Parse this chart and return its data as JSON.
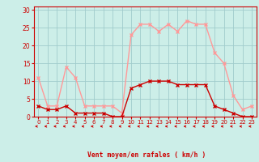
{
  "x": [
    0,
    1,
    2,
    3,
    4,
    5,
    6,
    7,
    8,
    9,
    10,
    11,
    12,
    13,
    14,
    15,
    16,
    17,
    18,
    19,
    20,
    21,
    22,
    23
  ],
  "wind_avg": [
    3,
    2,
    2,
    3,
    1,
    1,
    1,
    1,
    0,
    0,
    8,
    9,
    10,
    10,
    10,
    9,
    9,
    9,
    9,
    3,
    2,
    1,
    0,
    0
  ],
  "wind_gust": [
    11,
    3,
    3,
    14,
    11,
    3,
    3,
    3,
    3,
    1,
    23,
    26,
    26,
    24,
    26,
    24,
    27,
    26,
    26,
    18,
    15,
    6,
    2,
    3
  ],
  "bg_color": "#cceee8",
  "grid_color": "#a0cccc",
  "avg_color": "#cc0000",
  "gust_color": "#ff9999",
  "xlabel": "Vent moyen/en rafales ( km/h )",
  "tick_color": "#cc0000",
  "yticks": [
    0,
    5,
    10,
    15,
    20,
    25,
    30
  ],
  "xticks": [
    0,
    1,
    2,
    3,
    4,
    5,
    6,
    7,
    8,
    9,
    10,
    11,
    12,
    13,
    14,
    15,
    16,
    17,
    18,
    19,
    20,
    21,
    22,
    23
  ],
  "ylim": [
    0,
    31
  ],
  "xlim": [
    -0.5,
    23.5
  ]
}
